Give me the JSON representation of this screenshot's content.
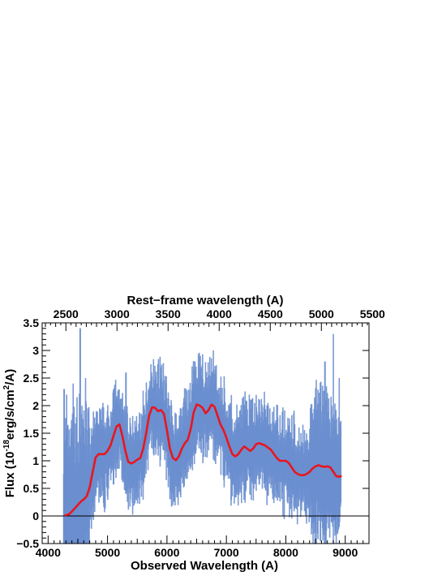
{
  "chart_data": {
    "type": "line",
    "xlabel": "Observed Wavelength (A)",
    "ylabel_parts": [
      "Flux (10",
      "-18",
      "erg/s/cm",
      "2",
      "/A)"
    ],
    "x2label": "Rest−frame wavelength (A)",
    "xlim": [
      3900,
      9400
    ],
    "ylim": [
      -0.5,
      3.5
    ],
    "x2lim": [
      2268,
      5466
    ],
    "xticks": [
      4000,
      5000,
      6000,
      7000,
      8000,
      9000
    ],
    "xtick_labels": [
      "4000",
      "5000",
      "6000",
      "7000",
      "8000",
      "9000"
    ],
    "yticks": [
      -0.5,
      0,
      0.5,
      1,
      1.5,
      2,
      2.5,
      3,
      3.5
    ],
    "ytick_labels": [
      "−0.5",
      "0",
      "0.5",
      "1",
      "1.5",
      "2",
      "2.5",
      "3",
      "3.5"
    ],
    "x2ticks": [
      2500,
      3000,
      3500,
      4000,
      4500,
      5000,
      5500
    ],
    "x2tick_labels": [
      "2500",
      "3000",
      "3500",
      "4000",
      "4500",
      "5000",
      "5500"
    ],
    "zero_line": 0,
    "colors": {
      "spectrum": "#6b8fcf",
      "smooth": "#e8161e",
      "axis": "#000000"
    },
    "series": [
      {
        "role": "smoothed",
        "x": [
          4280,
          4350,
          4400,
          4450,
          4500,
          4550,
          4600,
          4650,
          4700,
          4750,
          4800,
          4850,
          4900,
          4950,
          5000,
          5050,
          5100,
          5150,
          5200,
          5250,
          5300,
          5350,
          5400,
          5450,
          5500,
          5550,
          5600,
          5650,
          5700,
          5750,
          5800,
          5850,
          5900,
          5950,
          6000,
          6050,
          6100,
          6150,
          6200,
          6250,
          6300,
          6350,
          6400,
          6450,
          6500,
          6550,
          6600,
          6650,
          6700,
          6750,
          6800,
          6850,
          6900,
          6950,
          7000,
          7050,
          7100,
          7150,
          7200,
          7250,
          7300,
          7350,
          7400,
          7450,
          7500,
          7550,
          7600,
          7650,
          7700,
          7750,
          7800,
          7850,
          7900,
          7950,
          8000,
          8050,
          8100,
          8150,
          8200,
          8250,
          8300,
          8350,
          8400,
          8450,
          8500,
          8550,
          8600,
          8650,
          8700,
          8750,
          8800,
          8850,
          8900,
          8940
        ],
        "y": [
          0.01,
          0.03,
          0.08,
          0.14,
          0.2,
          0.26,
          0.3,
          0.36,
          0.52,
          0.8,
          1.06,
          1.12,
          1.12,
          1.12,
          1.18,
          1.28,
          1.45,
          1.62,
          1.66,
          1.45,
          1.18,
          0.98,
          0.95,
          0.98,
          1.02,
          1.05,
          1.22,
          1.5,
          1.82,
          1.97,
          1.96,
          1.9,
          1.92,
          1.85,
          1.55,
          1.22,
          1.05,
          1.01,
          1.08,
          1.22,
          1.32,
          1.38,
          1.58,
          1.88,
          2.02,
          2.0,
          1.96,
          1.86,
          1.92,
          2.02,
          1.98,
          1.82,
          1.66,
          1.56,
          1.42,
          1.26,
          1.12,
          1.08,
          1.12,
          1.2,
          1.26,
          1.22,
          1.18,
          1.22,
          1.3,
          1.32,
          1.3,
          1.28,
          1.24,
          1.2,
          1.12,
          1.05,
          1.0,
          1.0,
          1.0,
          0.96,
          0.88,
          0.8,
          0.76,
          0.74,
          0.74,
          0.76,
          0.8,
          0.86,
          0.9,
          0.92,
          0.9,
          0.89,
          0.9,
          0.88,
          0.8,
          0.72,
          0.71,
          0.73
        ]
      }
    ]
  }
}
